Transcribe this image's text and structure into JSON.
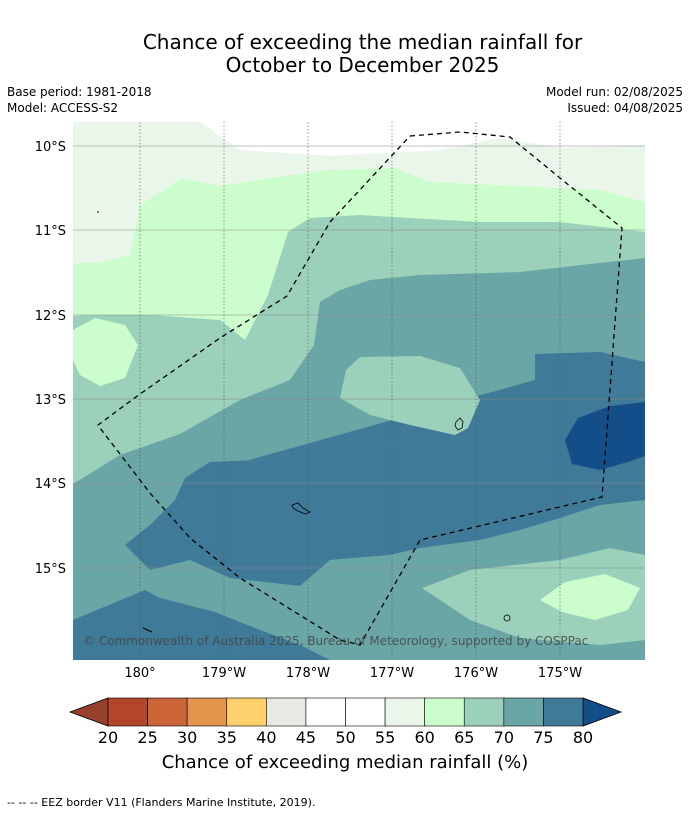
{
  "title": {
    "line1": "Chance of exceeding the median rainfall for",
    "line2": "October to December 2025"
  },
  "meta": {
    "base_period": "Base period: 1981-2018",
    "model": "Model: ACCESS-S2",
    "model_run": "Model run: 02/08/2025",
    "issued": "Issued: 04/08/2025"
  },
  "map": {
    "lat_labels": [
      "10°S",
      "11°S",
      "12°S",
      "13°S",
      "14°S",
      "15°S"
    ],
    "lon_labels": [
      "180°",
      "179°W",
      "178°W",
      "177°W",
      "176°W",
      "175°W"
    ],
    "copyright": "© Commonwealth of Australia 2025, Bureau of Meteorology, supported by COSPPac"
  },
  "colorbar": {
    "ticks": [
      "20",
      "25",
      "30",
      "35",
      "40",
      "45",
      "50",
      "55",
      "60",
      "65",
      "70",
      "75",
      "80"
    ],
    "colors": [
      "#b2452a",
      "#cb6436",
      "#e3954d",
      "#fed06b",
      "#e9e9e4",
      "#ffffff",
      "#ffffff",
      "#ebf6ea",
      "#ccfdcc",
      "#9bd1ba",
      "#6ba6a7",
      "#3f7a99"
    ],
    "low_extend_color": "#97402c",
    "high_extend_color": "#144e88",
    "label": "Chance of exceeding median rainfall (%)"
  },
  "footer": "--  --  -- EEZ border V11 (Flanders Marine Institute, 2019)."
}
